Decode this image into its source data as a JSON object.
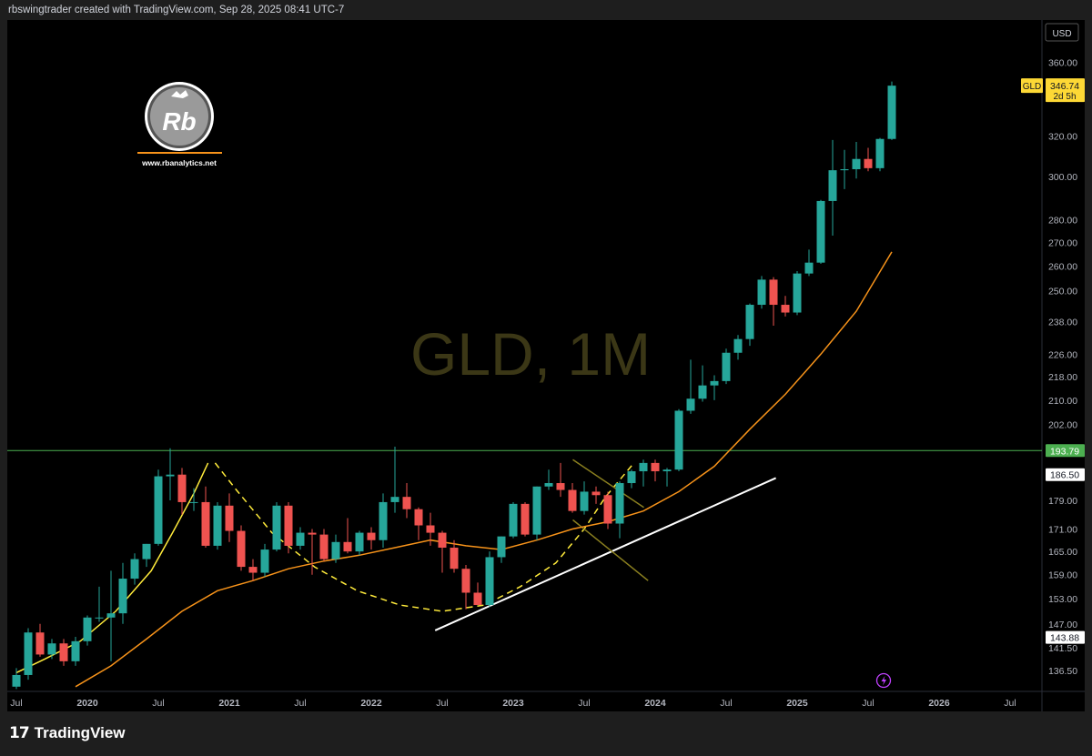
{
  "header": {
    "attribution": "rbswingtrader created with TradingView.com, Sep 28, 2025 08:41 UTC-7"
  },
  "footer": {
    "brand": "TradingView"
  },
  "watermark": {
    "text": "GLD, 1M"
  },
  "branding": {
    "logo_text": "Rb",
    "url": "www.rbanalytics.net"
  },
  "currency": "USD",
  "price_tag": {
    "symbol": "GLD",
    "price": "346.74",
    "countdown": "2d 5h"
  },
  "levels": [
    {
      "label": "193.79",
      "value": 193.79,
      "color": "#4caf50"
    },
    {
      "label": "186.50",
      "value": 186.5,
      "color": "#ffffff"
    },
    {
      "label": "143.88",
      "value": 143.88,
      "color": "#ffffff"
    }
  ],
  "colors": {
    "up": "#26a69a",
    "down": "#ef5350",
    "ma": "#f7931a",
    "level_line": "#4caf50"
  },
  "chart_data": {
    "type": "candlestick",
    "symbol": "GLD",
    "timeframe": "1M",
    "y_scale": "log",
    "ylim": [
      132,
      385
    ],
    "y_ticks": [
      360,
      320,
      300,
      280,
      270,
      260,
      250,
      238,
      226,
      218,
      210,
      202,
      179,
      171,
      165,
      159,
      153,
      147,
      141.5,
      136.5
    ],
    "y_tick_labels": [
      "360.00",
      "320.00",
      "300.00",
      "280.00",
      "270.00",
      "260.00",
      "250.00",
      "238.00",
      "226.00",
      "218.00",
      "210.00",
      "202.00",
      "179.00",
      "171.00",
      "165.00",
      "159.00",
      "153.00",
      "147.00",
      "141.50",
      "136.50"
    ],
    "x_ticks": [
      {
        "label": "Jul",
        "date": "2019-07"
      },
      {
        "label": "2020",
        "date": "2020-01"
      },
      {
        "label": "Jul",
        "date": "2020-07"
      },
      {
        "label": "2021",
        "date": "2021-01"
      },
      {
        "label": "Jul",
        "date": "2021-07"
      },
      {
        "label": "2022",
        "date": "2022-01"
      },
      {
        "label": "Jul",
        "date": "2022-07"
      },
      {
        "label": "2023",
        "date": "2023-01"
      },
      {
        "label": "Jul",
        "date": "2023-07"
      },
      {
        "label": "2024",
        "date": "2024-01"
      },
      {
        "label": "Jul",
        "date": "2024-07"
      },
      {
        "label": "2025",
        "date": "2025-01"
      },
      {
        "label": "Jul",
        "date": "2025-07"
      },
      {
        "label": "2026",
        "date": "2026-01"
      },
      {
        "label": "Jul",
        "date": "2026-07"
      }
    ],
    "ohlc": [
      {
        "date": "2019-07",
        "o": 133.0,
        "h": 137.0,
        "l": 132.5,
        "c": 135.5
      },
      {
        "date": "2019-08",
        "o": 135.5,
        "h": 146.0,
        "l": 134.5,
        "c": 145.0
      },
      {
        "date": "2019-09",
        "o": 145.0,
        "h": 147.0,
        "l": 139.5,
        "c": 140.0
      },
      {
        "date": "2019-10",
        "o": 140.0,
        "h": 143.5,
        "l": 139.0,
        "c": 142.5
      },
      {
        "date": "2019-11",
        "o": 142.5,
        "h": 143.5,
        "l": 137.5,
        "c": 138.5
      },
      {
        "date": "2019-12",
        "o": 138.5,
        "h": 144.0,
        "l": 137.5,
        "c": 143.0
      },
      {
        "date": "2020-01",
        "o": 143.0,
        "h": 149.0,
        "l": 142.0,
        "c": 148.5
      },
      {
        "date": "2020-02",
        "o": 148.5,
        "h": 156.0,
        "l": 147.5,
        "c": 148.5
      },
      {
        "date": "2020-03",
        "o": 148.5,
        "h": 160.0,
        "l": 138.5,
        "c": 149.5
      },
      {
        "date": "2020-04",
        "o": 149.5,
        "h": 162.0,
        "l": 147.0,
        "c": 158.0
      },
      {
        "date": "2020-05",
        "o": 158.0,
        "h": 164.5,
        "l": 156.5,
        "c": 163.0
      },
      {
        "date": "2020-06",
        "o": 163.0,
        "h": 167.0,
        "l": 161.0,
        "c": 167.0
      },
      {
        "date": "2020-07",
        "o": 167.0,
        "h": 188.0,
        "l": 166.5,
        "c": 186.0
      },
      {
        "date": "2020-08",
        "o": 186.0,
        "h": 194.5,
        "l": 179.0,
        "c": 186.5
      },
      {
        "date": "2020-09",
        "o": 186.5,
        "h": 188.5,
        "l": 175.0,
        "c": 178.5
      },
      {
        "date": "2020-10",
        "o": 178.5,
        "h": 182.5,
        "l": 176.0,
        "c": 178.5
      },
      {
        "date": "2020-11",
        "o": 178.5,
        "h": 183.0,
        "l": 166.0,
        "c": 166.5
      },
      {
        "date": "2020-12",
        "o": 166.5,
        "h": 178.5,
        "l": 165.5,
        "c": 177.5
      },
      {
        "date": "2021-01",
        "o": 177.5,
        "h": 181.0,
        "l": 167.5,
        "c": 170.5
      },
      {
        "date": "2021-02",
        "o": 170.5,
        "h": 172.0,
        "l": 160.0,
        "c": 161.0
      },
      {
        "date": "2021-03",
        "o": 161.0,
        "h": 163.0,
        "l": 157.5,
        "c": 159.5
      },
      {
        "date": "2021-04",
        "o": 159.5,
        "h": 167.0,
        "l": 158.5,
        "c": 165.5
      },
      {
        "date": "2021-05",
        "o": 165.5,
        "h": 178.5,
        "l": 165.0,
        "c": 177.5
      },
      {
        "date": "2021-06",
        "o": 177.5,
        "h": 178.5,
        "l": 164.5,
        "c": 166.5
      },
      {
        "date": "2021-07",
        "o": 166.5,
        "h": 171.5,
        "l": 165.5,
        "c": 170.0
      },
      {
        "date": "2021-08",
        "o": 170.0,
        "h": 171.0,
        "l": 159.0,
        "c": 169.5
      },
      {
        "date": "2021-09",
        "o": 169.5,
        "h": 171.0,
        "l": 162.5,
        "c": 163.0
      },
      {
        "date": "2021-10",
        "o": 163.0,
        "h": 169.5,
        "l": 162.0,
        "c": 167.5
      },
      {
        "date": "2021-11",
        "o": 167.5,
        "h": 174.0,
        "l": 164.5,
        "c": 165.0
      },
      {
        "date": "2021-12",
        "o": 165.0,
        "h": 170.5,
        "l": 164.0,
        "c": 170.0
      },
      {
        "date": "2022-01",
        "o": 170.0,
        "h": 171.5,
        "l": 165.5,
        "c": 168.0
      },
      {
        "date": "2022-02",
        "o": 168.0,
        "h": 181.0,
        "l": 166.0,
        "c": 178.5
      },
      {
        "date": "2022-03",
        "o": 178.5,
        "h": 195.0,
        "l": 175.5,
        "c": 180.0
      },
      {
        "date": "2022-04",
        "o": 180.0,
        "h": 184.0,
        "l": 174.0,
        "c": 176.5
      },
      {
        "date": "2022-05",
        "o": 176.5,
        "h": 177.0,
        "l": 168.0,
        "c": 172.0
      },
      {
        "date": "2022-06",
        "o": 172.0,
        "h": 175.5,
        "l": 166.5,
        "c": 170.0
      },
      {
        "date": "2022-07",
        "o": 170.0,
        "h": 170.5,
        "l": 159.5,
        "c": 166.0
      },
      {
        "date": "2022-08",
        "o": 166.0,
        "h": 168.0,
        "l": 159.5,
        "c": 160.5
      },
      {
        "date": "2022-09",
        "o": 160.5,
        "h": 161.5,
        "l": 150.5,
        "c": 154.5
      },
      {
        "date": "2022-10",
        "o": 154.5,
        "h": 157.0,
        "l": 151.5,
        "c": 151.5
      },
      {
        "date": "2022-11",
        "o": 151.5,
        "h": 165.0,
        "l": 151.0,
        "c": 163.5
      },
      {
        "date": "2022-12",
        "o": 163.5,
        "h": 169.0,
        "l": 162.0,
        "c": 169.0
      },
      {
        "date": "2023-01",
        "o": 169.0,
        "h": 178.5,
        "l": 168.5,
        "c": 178.0
      },
      {
        "date": "2023-02",
        "o": 178.0,
        "h": 178.5,
        "l": 169.0,
        "c": 169.5
      },
      {
        "date": "2023-03",
        "o": 169.5,
        "h": 183.0,
        "l": 168.0,
        "c": 183.0
      },
      {
        "date": "2023-04",
        "o": 183.0,
        "h": 188.0,
        "l": 182.0,
        "c": 184.0
      },
      {
        "date": "2023-05",
        "o": 184.0,
        "h": 190.0,
        "l": 180.0,
        "c": 182.0
      },
      {
        "date": "2023-06",
        "o": 182.0,
        "h": 184.0,
        "l": 175.5,
        "c": 176.0
      },
      {
        "date": "2023-07",
        "o": 176.0,
        "h": 184.5,
        "l": 175.0,
        "c": 181.5
      },
      {
        "date": "2023-08",
        "o": 181.5,
        "h": 183.0,
        "l": 178.0,
        "c": 180.5
      },
      {
        "date": "2023-09",
        "o": 180.5,
        "h": 181.5,
        "l": 171.0,
        "c": 172.5
      },
      {
        "date": "2023-10",
        "o": 172.5,
        "h": 184.5,
        "l": 168.5,
        "c": 184.0
      },
      {
        "date": "2023-11",
        "o": 184.0,
        "h": 188.0,
        "l": 182.5,
        "c": 187.5
      },
      {
        "date": "2023-12",
        "o": 187.5,
        "h": 191.0,
        "l": 183.0,
        "c": 190.0
      },
      {
        "date": "2024-01",
        "o": 190.0,
        "h": 191.0,
        "l": 184.5,
        "c": 187.5
      },
      {
        "date": "2024-02",
        "o": 187.5,
        "h": 188.5,
        "l": 183.0,
        "c": 188.0
      },
      {
        "date": "2024-03",
        "o": 188.0,
        "h": 207.0,
        "l": 187.5,
        "c": 206.5
      },
      {
        "date": "2024-04",
        "o": 206.5,
        "h": 224.0,
        "l": 205.5,
        "c": 210.5
      },
      {
        "date": "2024-05",
        "o": 210.5,
        "h": 222.0,
        "l": 209.5,
        "c": 215.0
      },
      {
        "date": "2024-06",
        "o": 215.0,
        "h": 218.5,
        "l": 210.0,
        "c": 216.5
      },
      {
        "date": "2024-07",
        "o": 216.5,
        "h": 228.0,
        "l": 215.5,
        "c": 226.5
      },
      {
        "date": "2024-08",
        "o": 226.5,
        "h": 233.0,
        "l": 224.0,
        "c": 231.5
      },
      {
        "date": "2024-09",
        "o": 231.5,
        "h": 245.0,
        "l": 229.0,
        "c": 244.5
      },
      {
        "date": "2024-10",
        "o": 244.5,
        "h": 256.0,
        "l": 243.0,
        "c": 254.5
      },
      {
        "date": "2024-11",
        "o": 254.5,
        "h": 255.5,
        "l": 236.5,
        "c": 244.5
      },
      {
        "date": "2024-12",
        "o": 244.5,
        "h": 248.0,
        "l": 240.0,
        "c": 241.5
      },
      {
        "date": "2025-01",
        "o": 241.5,
        "h": 258.0,
        "l": 240.5,
        "c": 257.0
      },
      {
        "date": "2025-02",
        "o": 257.0,
        "h": 267.0,
        "l": 256.0,
        "c": 261.5
      },
      {
        "date": "2025-03",
        "o": 261.5,
        "h": 289.0,
        "l": 261.0,
        "c": 288.5
      },
      {
        "date": "2025-04",
        "o": 288.5,
        "h": 318.0,
        "l": 273.0,
        "c": 303.0
      },
      {
        "date": "2025-05",
        "o": 303.0,
        "h": 313.0,
        "l": 294.0,
        "c": 303.5
      },
      {
        "date": "2025-06",
        "o": 303.5,
        "h": 317.0,
        "l": 299.0,
        "c": 308.5
      },
      {
        "date": "2025-07",
        "o": 308.5,
        "h": 314.0,
        "l": 302.5,
        "c": 304.0
      },
      {
        "date": "2025-08",
        "o": 304.0,
        "h": 319.0,
        "l": 302.5,
        "c": 318.5
      },
      {
        "date": "2025-09",
        "o": 318.5,
        "h": 349.0,
        "l": 318.0,
        "c": 346.74
      }
    ],
    "moving_average": [
      {
        "date": "2019-12",
        "v": 133.0
      },
      {
        "date": "2020-03",
        "v": 137.5
      },
      {
        "date": "2020-06",
        "v": 143.5
      },
      {
        "date": "2020-09",
        "v": 150.0
      },
      {
        "date": "2020-12",
        "v": 155.0
      },
      {
        "date": "2021-03",
        "v": 157.5
      },
      {
        "date": "2021-06",
        "v": 160.5
      },
      {
        "date": "2021-09",
        "v": 162.5
      },
      {
        "date": "2021-12",
        "v": 164.0
      },
      {
        "date": "2022-03",
        "v": 166.0
      },
      {
        "date": "2022-06",
        "v": 168.0
      },
      {
        "date": "2022-09",
        "v": 166.5
      },
      {
        "date": "2022-12",
        "v": 165.5
      },
      {
        "date": "2023-03",
        "v": 168.0
      },
      {
        "date": "2023-06",
        "v": 171.0
      },
      {
        "date": "2023-09",
        "v": 173.0
      },
      {
        "date": "2023-12",
        "v": 176.0
      },
      {
        "date": "2024-03",
        "v": 181.5
      },
      {
        "date": "2024-06",
        "v": 189.0
      },
      {
        "date": "2024-09",
        "v": 200.5
      },
      {
        "date": "2024-12",
        "v": 212.0
      },
      {
        "date": "2025-03",
        "v": 226.0
      },
      {
        "date": "2025-06",
        "v": 242.0
      },
      {
        "date": "2025-09",
        "v": 266.0
      }
    ]
  }
}
